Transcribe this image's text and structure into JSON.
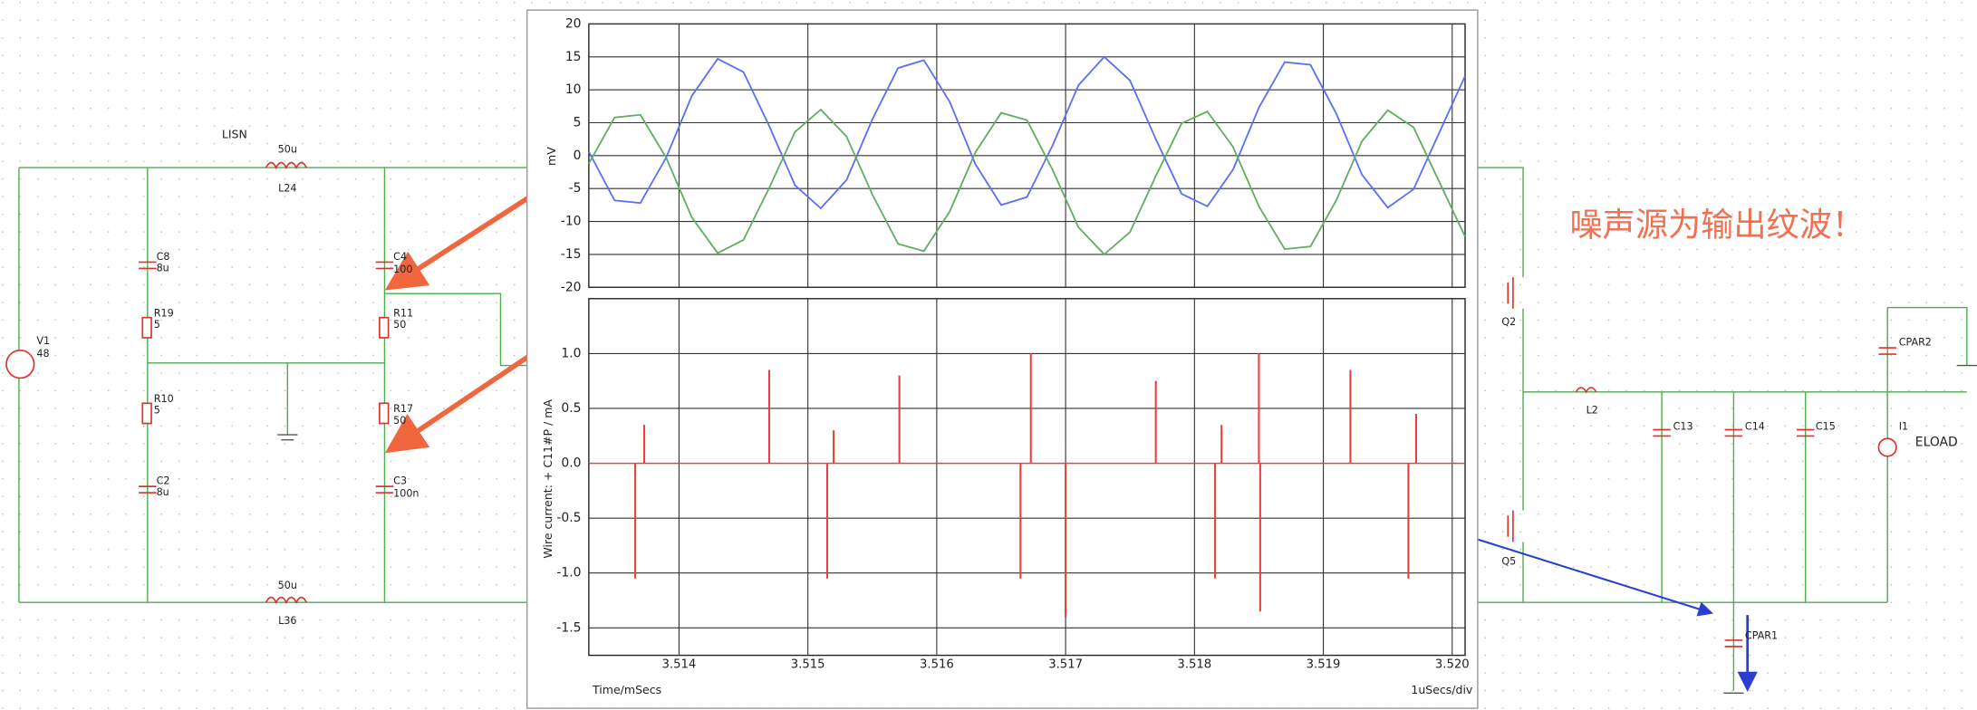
{
  "chart_data": [
    {
      "type": "line",
      "ylabel": "mV",
      "x": [
        3.5133,
        3.5135,
        3.5137,
        3.5139,
        3.5141,
        3.5143,
        3.5145,
        3.5147,
        3.5149,
        3.5151,
        3.5153,
        3.5155,
        3.5157,
        3.5159,
        3.5161,
        3.5163,
        3.5165,
        3.5167,
        3.5169,
        3.5171,
        3.5173,
        3.5175,
        3.5177,
        3.5179,
        3.5181,
        3.5183,
        3.5185,
        3.5187,
        3.5189,
        3.5191,
        3.5193,
        3.5195,
        3.5197,
        3.5199,
        3.5201
      ],
      "series": [
        {
          "color": "#5b6ef5",
          "values": [
            0.6,
            -6.8,
            -7.2,
            -0.3,
            9.1,
            14.7,
            12.7,
            4.5,
            -4.5,
            -8.0,
            -3.7,
            5.5,
            13.3,
            14.5,
            8.2,
            -1.3,
            -7.5,
            -6.3,
            1.6,
            10.7,
            15.0,
            11.4,
            2.5,
            -5.8,
            -7.7,
            -2.1,
            7.3,
            14.2,
            13.8,
            6.4,
            -2.9,
            -7.9,
            -5.1,
            3.5,
            12.1
          ]
        },
        {
          "color": "#5fae5f",
          "values": [
            -1.2,
            5.8,
            6.2,
            -0.3,
            -9.4,
            -14.8,
            -12.8,
            -4.9,
            3.6,
            7.0,
            2.9,
            -5.9,
            -13.4,
            -14.5,
            -8.5,
            0.5,
            6.5,
            5.4,
            -2.2,
            -10.9,
            -15.0,
            -11.6,
            -3.1,
            4.9,
            6.7,
            1.3,
            -7.7,
            -14.2,
            -13.8,
            -6.8,
            2.2,
            6.9,
            4.3,
            -4.0,
            -12.3
          ]
        }
      ],
      "xlim": [
        3.5133,
        3.5201
      ],
      "ylim": [
        -20,
        20
      ],
      "yticks": [
        20,
        15,
        10,
        5,
        0,
        -5,
        -10,
        -15,
        -20
      ],
      "grid": true
    },
    {
      "type": "stem",
      "ylabel": "Wire current: + C11#P / mA",
      "xlabel": "Time/mSecs",
      "scale": "1uSecs/div",
      "x": [
        3.51366,
        3.51373,
        3.5147,
        3.51515,
        3.5152,
        3.51571,
        3.51665,
        3.51673,
        3.517,
        3.5177,
        3.51816,
        3.51821,
        3.5185,
        3.51851,
        3.51921,
        3.51966,
        3.51972
      ],
      "series": [
        {
          "color": "#e8413c",
          "values": [
            -1.05,
            0.35,
            0.85,
            -1.05,
            0.3,
            0.8,
            -1.05,
            1.0,
            -1.4,
            0.75,
            -1.05,
            0.35,
            1.0,
            -1.35,
            0.85,
            -1.05,
            0.45
          ]
        }
      ],
      "xlim": [
        3.5133,
        3.5201
      ],
      "ylim": [
        -1.75,
        1.5
      ],
      "xticks": [
        3.514,
        3.515,
        3.516,
        3.517,
        3.518,
        3.519,
        {
          "value": 3.52,
          "label": "3.520"
        }
      ],
      "yticks": [
        {
          "value": 1,
          "label": "1.0"
        },
        0.5,
        {
          "value": 0,
          "label": "0.0"
        },
        -0.5,
        {
          "value": -1,
          "label": "-1.0"
        },
        -1.5
      ],
      "grid": true
    }
  ],
  "schematic": {
    "labels": [
      "LISN",
      "50u",
      "L24",
      "C8",
      "8u",
      "R19",
      "5",
      "R10",
      "5",
      "C2",
      "8u",
      "V1",
      "48",
      "C4",
      "100",
      "R11",
      "50",
      "R17",
      "50",
      "C3",
      "100n",
      "50u",
      "L36",
      "Q2",
      "Q5",
      "L2",
      "C13",
      "C14",
      "C15",
      "CPAR2",
      "I1",
      "ELOAD",
      "CPAR1"
    ],
    "annotation": "噪声源为输出纹波！"
  }
}
